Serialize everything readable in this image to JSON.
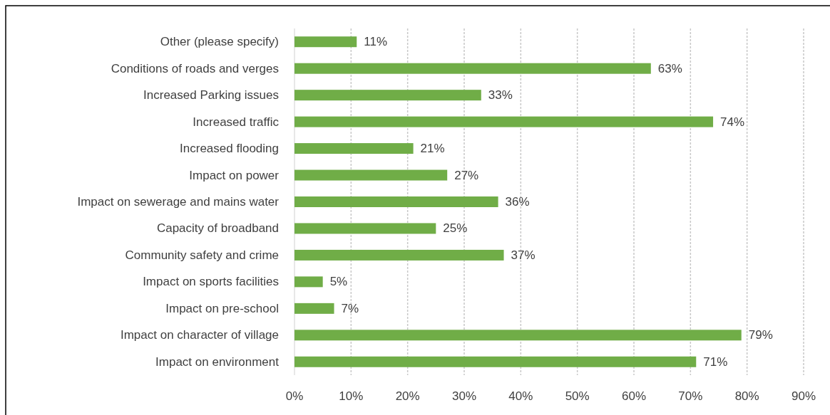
{
  "chart_data": {
    "type": "bar",
    "orientation": "horizontal",
    "categories": [
      "Other (please specify)",
      "Conditions of roads and verges",
      "Increased Parking issues",
      "Increased traffic",
      "Increased flooding",
      "Impact on power",
      "Impact on sewerage and mains water",
      "Capacity of broadband",
      "Community safety and crime",
      "Impact on sports facilities",
      "Impact on pre-school",
      "Impact on character of village",
      "Impact on environment"
    ],
    "values": [
      11,
      63,
      33,
      74,
      21,
      27,
      36,
      25,
      37,
      5,
      7,
      79,
      71
    ],
    "value_labels": [
      "11%",
      "63%",
      "33%",
      "74%",
      "21%",
      "27%",
      "36%",
      "25%",
      "37%",
      "5%",
      "7%",
      "79%",
      "71%"
    ],
    "color": "#70ad47",
    "xlim": [
      0,
      90
    ],
    "xticks": [
      {
        "value": 0,
        "label": "0%"
      },
      {
        "value": 10,
        "label": "10%"
      },
      {
        "value": 20,
        "label": "20%"
      },
      {
        "value": 30,
        "label": "30%"
      },
      {
        "value": 40,
        "label": "40%"
      },
      {
        "value": 50,
        "label": "50%"
      },
      {
        "value": 60,
        "label": "60%"
      },
      {
        "value": 70,
        "label": "70%"
      },
      {
        "value": 80,
        "label": "80%"
      },
      {
        "value": 90,
        "label": "90%"
      }
    ],
    "grid": "x"
  }
}
